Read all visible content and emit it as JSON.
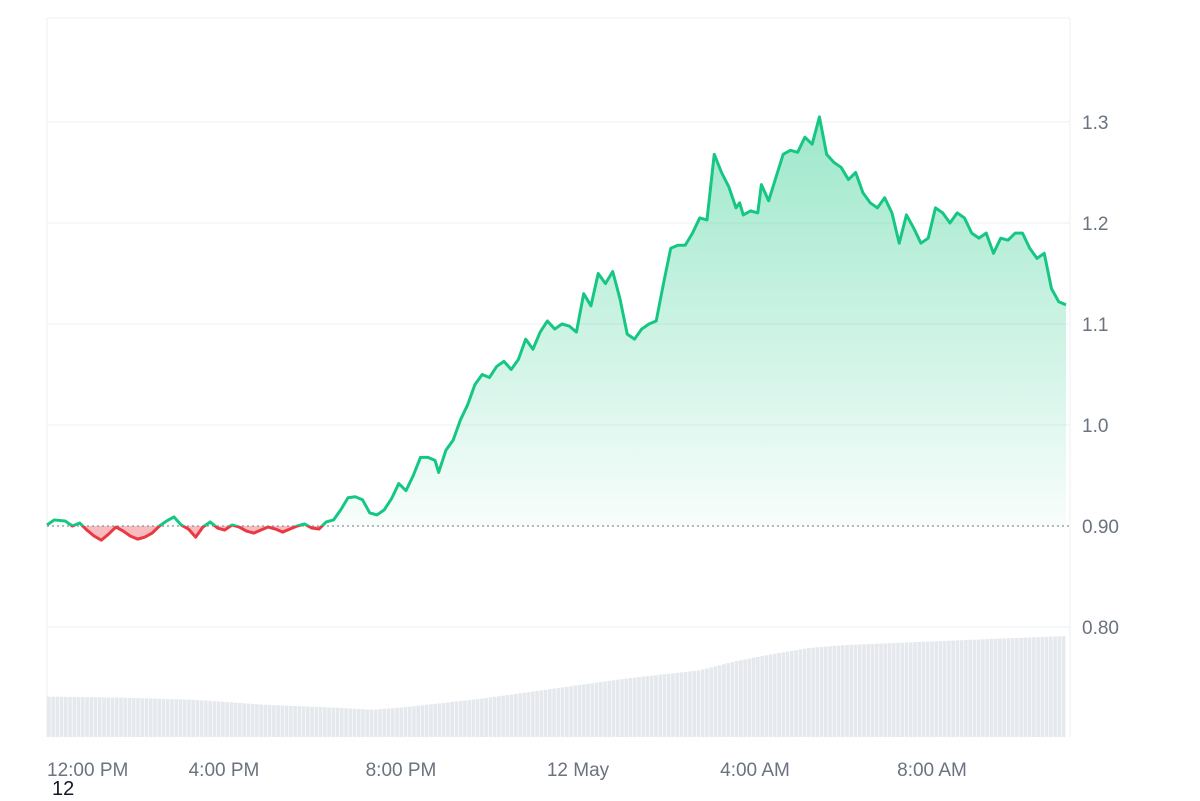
{
  "corner_label": "12",
  "colors": {
    "up": "#16c784",
    "down": "#ea3943",
    "grid": "#eceff2",
    "volume": "#e5e9ee",
    "tick_text": "#6b7280",
    "baseline": "#8a8f98"
  },
  "chart_data": {
    "type": "area",
    "baseline": 0.9,
    "y_ticks": [
      0.8,
      0.9,
      1.0,
      1.1,
      1.2,
      1.3
    ],
    "y_tick_labels": [
      "0.80",
      "0.90",
      "1.0",
      "1.1",
      "1.2",
      "1.3"
    ],
    "ylim": [
      0.7,
      1.4
    ],
    "x_tick_labels": [
      "12:00 PM",
      "4:00 PM",
      "8:00 PM",
      "12 May",
      "4:00 AM",
      "8:00 AM"
    ],
    "x_tick_hours": [
      12,
      16,
      20,
      24,
      28,
      32
    ],
    "xlim_hours": [
      12,
      36.2
    ],
    "grid": true,
    "price_series": [
      [
        12.0,
        0.901
      ],
      [
        12.2,
        0.906
      ],
      [
        12.5,
        0.905
      ],
      [
        12.7,
        0.9
      ],
      [
        12.9,
        0.903
      ],
      [
        13.1,
        0.896
      ],
      [
        13.3,
        0.89
      ],
      [
        13.5,
        0.886
      ],
      [
        13.7,
        0.892
      ],
      [
        13.9,
        0.899
      ],
      [
        14.1,
        0.895
      ],
      [
        14.3,
        0.89
      ],
      [
        14.5,
        0.887
      ],
      [
        14.7,
        0.889
      ],
      [
        14.9,
        0.893
      ],
      [
        15.1,
        0.9
      ],
      [
        15.3,
        0.905
      ],
      [
        15.5,
        0.909
      ],
      [
        15.7,
        0.901
      ],
      [
        15.9,
        0.897
      ],
      [
        16.1,
        0.889
      ],
      [
        16.3,
        0.899
      ],
      [
        16.5,
        0.904
      ],
      [
        16.7,
        0.898
      ],
      [
        16.9,
        0.896
      ],
      [
        17.1,
        0.901
      ],
      [
        17.3,
        0.899
      ],
      [
        17.5,
        0.895
      ],
      [
        17.7,
        0.893
      ],
      [
        17.9,
        0.896
      ],
      [
        18.1,
        0.899
      ],
      [
        18.3,
        0.897
      ],
      [
        18.5,
        0.894
      ],
      [
        18.7,
        0.897
      ],
      [
        18.9,
        0.9
      ],
      [
        19.1,
        0.902
      ],
      [
        19.3,
        0.898
      ],
      [
        19.5,
        0.897
      ],
      [
        19.7,
        0.904
      ],
      [
        19.9,
        0.906
      ],
      [
        20.1,
        0.916
      ],
      [
        20.3,
        0.928
      ],
      [
        20.5,
        0.929
      ],
      [
        20.7,
        0.926
      ],
      [
        20.9,
        0.913
      ],
      [
        21.1,
        0.911
      ],
      [
        21.3,
        0.916
      ],
      [
        21.5,
        0.927
      ],
      [
        21.7,
        0.942
      ],
      [
        21.9,
        0.935
      ],
      [
        22.1,
        0.95
      ],
      [
        22.3,
        0.968
      ],
      [
        22.5,
        0.968
      ],
      [
        22.7,
        0.965
      ],
      [
        22.8,
        0.953
      ],
      [
        23.0,
        0.975
      ],
      [
        23.2,
        0.985
      ],
      [
        23.4,
        1.005
      ],
      [
        23.6,
        1.02
      ],
      [
        23.8,
        1.04
      ],
      [
        24.0,
        1.05
      ],
      [
        24.2,
        1.047
      ],
      [
        24.4,
        1.058
      ],
      [
        24.6,
        1.063
      ],
      [
        24.8,
        1.055
      ],
      [
        25.0,
        1.065
      ],
      [
        25.2,
        1.085
      ],
      [
        25.4,
        1.075
      ],
      [
        25.6,
        1.092
      ],
      [
        25.8,
        1.103
      ],
      [
        26.0,
        1.095
      ],
      [
        26.2,
        1.1
      ],
      [
        26.4,
        1.098
      ],
      [
        26.6,
        1.092
      ],
      [
        26.8,
        1.13
      ],
      [
        27.0,
        1.118
      ],
      [
        27.2,
        1.15
      ],
      [
        27.4,
        1.14
      ],
      [
        27.6,
        1.152
      ],
      [
        27.8,
        1.125
      ],
      [
        28.0,
        1.09
      ],
      [
        28.2,
        1.085
      ],
      [
        28.4,
        1.095
      ],
      [
        28.6,
        1.1
      ],
      [
        28.8,
        1.103
      ],
      [
        29.0,
        1.14
      ],
      [
        29.2,
        1.175
      ],
      [
        29.4,
        1.178
      ],
      [
        29.6,
        1.178
      ],
      [
        29.8,
        1.19
      ],
      [
        30.0,
        1.205
      ],
      [
        30.2,
        1.203
      ],
      [
        30.4,
        1.268
      ],
      [
        30.6,
        1.25
      ],
      [
        30.8,
        1.236
      ],
      [
        31.0,
        1.215
      ],
      [
        31.1,
        1.22
      ],
      [
        31.2,
        1.208
      ],
      [
        31.4,
        1.212
      ],
      [
        31.6,
        1.21
      ],
      [
        31.7,
        1.238
      ],
      [
        31.9,
        1.222
      ],
      [
        32.1,
        1.245
      ],
      [
        32.3,
        1.268
      ],
      [
        32.5,
        1.272
      ],
      [
        32.7,
        1.27
      ],
      [
        32.9,
        1.285
      ],
      [
        33.1,
        1.278
      ],
      [
        33.3,
        1.305
      ],
      [
        33.5,
        1.268
      ],
      [
        33.7,
        1.26
      ],
      [
        33.9,
        1.255
      ],
      [
        34.1,
        1.243
      ],
      [
        34.3,
        1.25
      ],
      [
        34.5,
        1.23
      ],
      [
        34.7,
        1.22
      ],
      [
        34.9,
        1.215
      ],
      [
        35.1,
        1.225
      ],
      [
        35.3,
        1.21
      ],
      [
        35.5,
        1.18
      ],
      [
        35.7,
        1.208
      ],
      [
        35.9,
        1.195
      ],
      [
        36.1,
        1.18
      ],
      [
        36.3,
        1.185
      ],
      [
        36.5,
        1.215
      ],
      [
        36.7,
        1.21
      ],
      [
        36.9,
        1.2
      ],
      [
        37.1,
        1.21
      ],
      [
        37.3,
        1.205
      ],
      [
        37.5,
        1.19
      ],
      [
        37.7,
        1.185
      ],
      [
        37.9,
        1.19
      ],
      [
        38.1,
        1.17
      ],
      [
        38.3,
        1.185
      ],
      [
        38.5,
        1.183
      ],
      [
        38.7,
        1.19
      ],
      [
        38.9,
        1.19
      ],
      [
        39.1,
        1.175
      ],
      [
        39.3,
        1.165
      ],
      [
        39.5,
        1.17
      ],
      [
        39.7,
        1.135
      ],
      [
        39.9,
        1.122
      ],
      [
        40.1,
        1.119
      ]
    ],
    "volume_levels": [
      [
        12.0,
        0.4
      ],
      [
        14.0,
        0.39
      ],
      [
        16.0,
        0.37
      ],
      [
        18.0,
        0.32
      ],
      [
        20.0,
        0.29
      ],
      [
        21.0,
        0.27
      ],
      [
        22.0,
        0.3
      ],
      [
        24.0,
        0.38
      ],
      [
        26.0,
        0.48
      ],
      [
        28.0,
        0.58
      ],
      [
        30.0,
        0.66
      ],
      [
        31.0,
        0.75
      ],
      [
        32.0,
        0.82
      ],
      [
        33.0,
        0.88
      ],
      [
        34.0,
        0.91
      ],
      [
        36.0,
        0.94
      ],
      [
        38.0,
        0.97
      ],
      [
        40.1,
        1.0
      ]
    ]
  }
}
